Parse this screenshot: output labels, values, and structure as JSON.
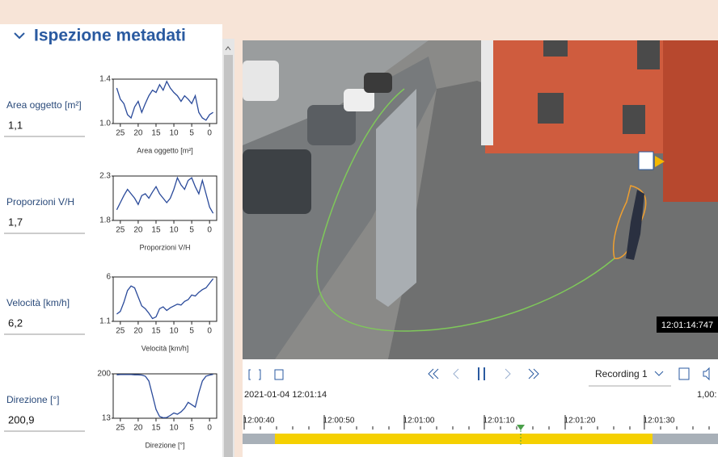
{
  "header": {
    "title": "Ispezione metadati"
  },
  "metrics": [
    {
      "label": "Area oggetto [m²]",
      "value": "1,1",
      "chart": {
        "type": "line",
        "x_label": "Area oggetto [m²]",
        "color": "#2a4a9a",
        "xlim": [
          27,
          -2
        ],
        "xticks": [
          25,
          20,
          15,
          10,
          5,
          0
        ],
        "ylim": [
          1,
          1.4
        ],
        "yticks": [
          {
            "value": 1,
            "label": "1.0"
          },
          1.4
        ],
        "x": [
          26,
          25,
          24,
          23,
          22,
          21,
          20,
          19,
          18,
          17,
          16,
          15,
          14,
          13,
          12,
          11,
          10,
          9,
          8,
          7,
          6,
          5,
          4,
          3,
          2,
          1,
          0,
          -1
        ],
        "values": [
          1.32,
          1.22,
          1.18,
          1.08,
          1.05,
          1.15,
          1.2,
          1.1,
          1.18,
          1.25,
          1.3,
          1.28,
          1.35,
          1.3,
          1.38,
          1.32,
          1.28,
          1.25,
          1.2,
          1.25,
          1.22,
          1.18,
          1.25,
          1.1,
          1.05,
          1.03,
          1.08,
          1.1
        ]
      }
    },
    {
      "label": "Proporzioni V/H",
      "value": "1,7",
      "chart": {
        "type": "line",
        "x_label": "Proporzioni V/H",
        "color": "#2a4a9a",
        "xlim": [
          27,
          -2
        ],
        "xticks": [
          25,
          20,
          15,
          10,
          5,
          0
        ],
        "ylim": [
          1.8,
          2.3
        ],
        "yticks": [
          1.8,
          2.3
        ],
        "x": [
          26,
          25,
          24,
          23,
          22,
          21,
          20,
          19,
          18,
          17,
          16,
          15,
          14,
          13,
          12,
          11,
          10,
          9,
          8,
          7,
          6,
          5,
          4,
          3,
          2,
          1,
          0,
          -1
        ],
        "values": [
          1.92,
          2.0,
          2.08,
          2.15,
          2.1,
          2.05,
          1.98,
          2.08,
          2.1,
          2.05,
          2.12,
          2.18,
          2.1,
          2.05,
          2.0,
          2.05,
          2.15,
          2.28,
          2.2,
          2.15,
          2.25,
          2.28,
          2.18,
          2.1,
          2.25,
          2.1,
          1.95,
          1.88
        ]
      }
    },
    {
      "label": "Velocità [km/h]",
      "value": "6,2",
      "chart": {
        "type": "line",
        "x_label": "Velocità [km/h]",
        "color": "#2a4a9a",
        "xlim": [
          27,
          -2
        ],
        "xticks": [
          25,
          20,
          15,
          10,
          5,
          0
        ],
        "ylim": [
          1.1,
          6
        ],
        "yticks": [
          1.1,
          6
        ],
        "x": [
          26,
          25,
          24,
          23,
          22,
          21,
          20,
          19,
          18,
          17,
          16,
          15,
          14,
          13,
          12,
          11,
          10,
          9,
          8,
          7,
          6,
          5,
          4,
          3,
          2,
          1,
          0,
          -1
        ],
        "values": [
          1.9,
          2.2,
          3.2,
          4.5,
          5.0,
          4.8,
          3.8,
          2.8,
          2.5,
          2.0,
          1.4,
          1.6,
          2.5,
          2.7,
          2.3,
          2.6,
          2.8,
          3.0,
          2.9,
          3.3,
          3.5,
          4.0,
          3.9,
          4.3,
          4.6,
          4.8,
          5.3,
          5.8
        ]
      }
    },
    {
      "label": "Direzione [°]",
      "value": "200,9",
      "chart": {
        "type": "line",
        "x_label": "Direzione [°]",
        "color": "#2a4a9a",
        "xlim": [
          27,
          -2
        ],
        "xticks": [
          25,
          20,
          15,
          10,
          5,
          0
        ],
        "ylim": [
          13,
          200
        ],
        "yticks": [
          13,
          200
        ],
        "x": [
          26,
          25,
          24,
          23,
          22,
          21,
          20,
          19,
          18,
          17,
          16,
          15,
          14,
          13,
          12,
          11,
          10,
          9,
          8,
          7,
          6,
          5,
          4,
          3,
          2,
          1,
          0,
          -1
        ],
        "values": [
          196,
          197,
          197,
          197,
          197,
          196,
          196,
          195,
          190,
          170,
          110,
          50,
          20,
          15,
          16,
          25,
          35,
          30,
          40,
          55,
          80,
          70,
          60,
          120,
          170,
          190,
          195,
          198
        ]
      }
    }
  ],
  "video": {
    "timestamp": "12:01:14:747"
  },
  "controls": {
    "recording": "Recording 1",
    "datetime": "2021-01-04 12:01:14",
    "speed": "1,00:"
  },
  "timeline": {
    "labels": [
      "12:00:40",
      "12:00:50",
      "12:01:00",
      "12:01:10",
      "12:01:20",
      "12:01:30"
    ]
  }
}
